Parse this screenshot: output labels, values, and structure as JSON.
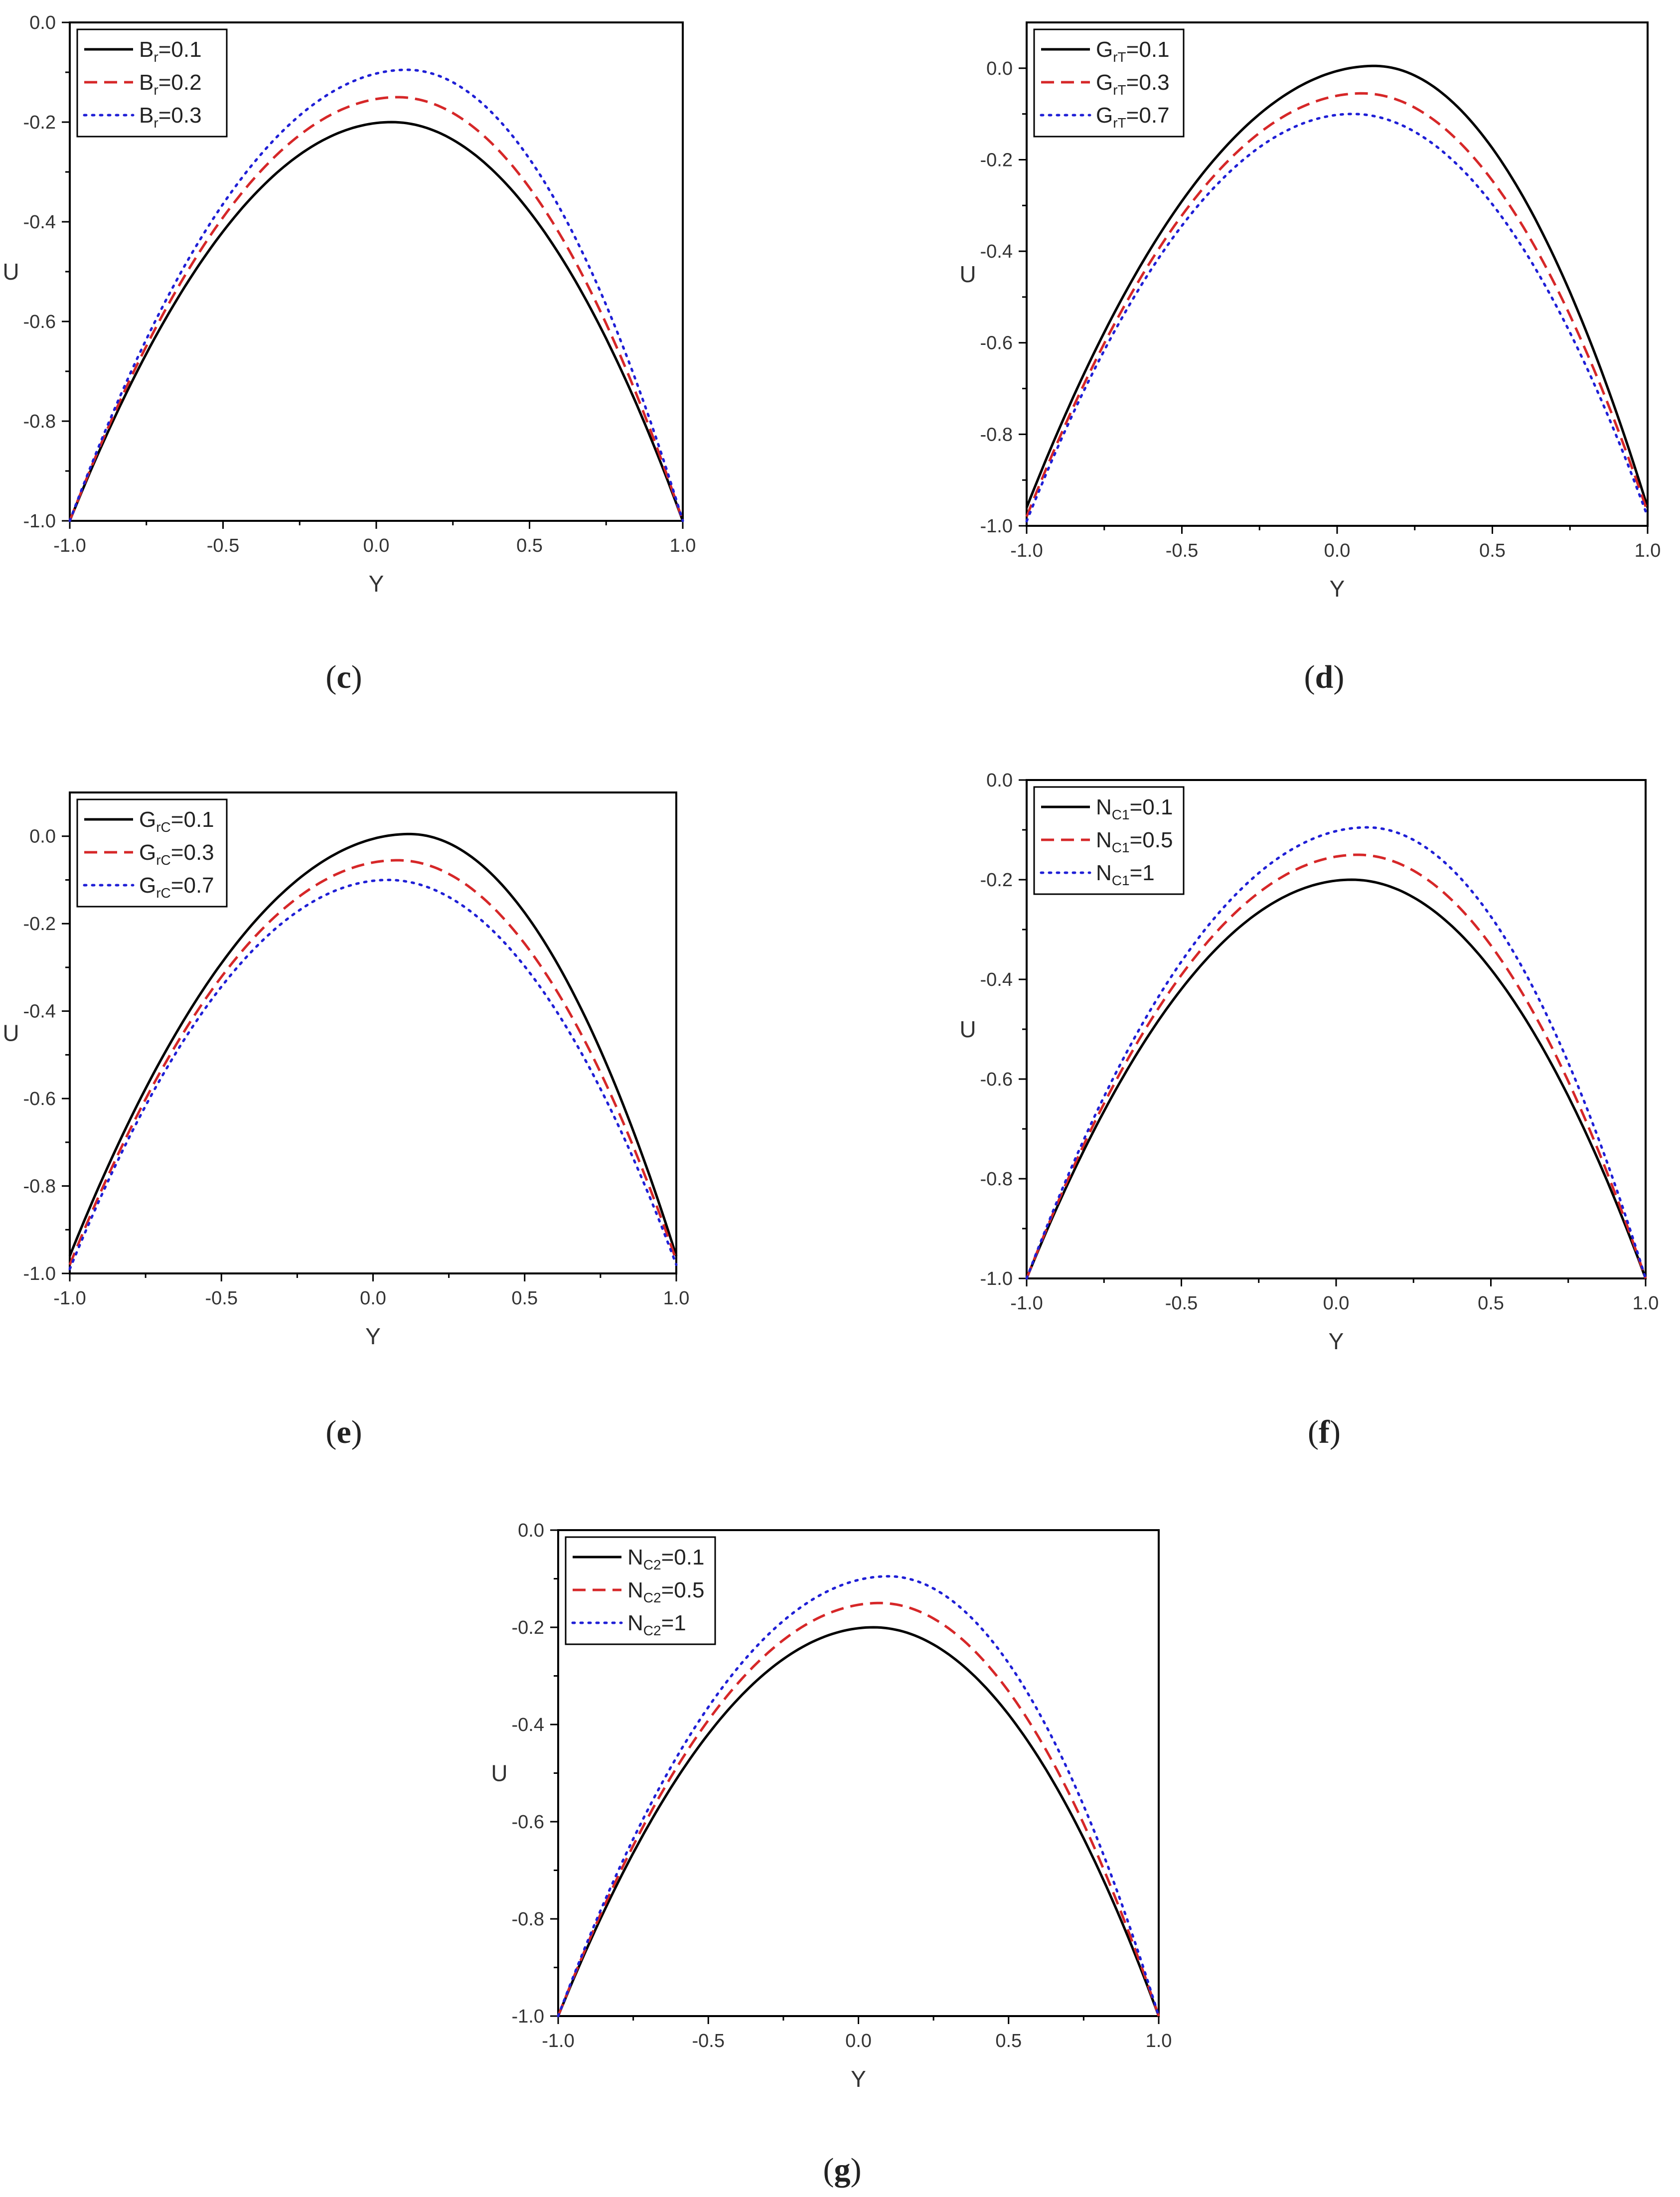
{
  "chart_data": [
    {
      "type": "line",
      "panel": "c",
      "xlabel": "Y",
      "ylabel": "U",
      "xlim": [
        -1.0,
        1.0
      ],
      "ylim": [
        -1.0,
        0.0
      ],
      "xticks": [
        "-1.0",
        "-0.5",
        "0.0",
        "0.5",
        "1.0"
      ],
      "yticks": [
        "0.0",
        "-0.2",
        "-0.4",
        "-0.6",
        "-0.8",
        "-1.0"
      ],
      "legend_position": "top-left",
      "series": [
        {
          "name": "B_r=0.1",
          "label_main": "B",
          "label_sub": "r",
          "label_tail": "=0.1",
          "style": "solid",
          "color": "#000000",
          "left": -1.0,
          "right": -1.0,
          "peak_x": 0.05,
          "peak_y": -0.2
        },
        {
          "name": "B_r=0.2",
          "label_main": "B",
          "label_sub": "r",
          "label_tail": "=0.2",
          "style": "dashed",
          "color": "#d62728",
          "left": -1.0,
          "right": -1.0,
          "peak_x": 0.07,
          "peak_y": -0.15
        },
        {
          "name": "B_r=0.3",
          "label_main": "B",
          "label_sub": "r",
          "label_tail": "=0.3",
          "style": "dotted",
          "color": "#1f1fd6",
          "left": -1.0,
          "right": -1.0,
          "peak_x": 0.1,
          "peak_y": -0.095
        }
      ]
    },
    {
      "type": "line",
      "panel": "d",
      "xlabel": "Y",
      "ylabel": "U",
      "xlim": [
        -1.0,
        1.0
      ],
      "ylim": [
        -1.0,
        0.1
      ],
      "xticks": [
        "-1.0",
        "-0.5",
        "0.0",
        "0.5",
        "1.0"
      ],
      "yticks": [
        "0.0",
        "-0.2",
        "-0.4",
        "-0.6",
        "-0.8",
        "-1.0"
      ],
      "legend_position": "top-left",
      "series": [
        {
          "name": "G_rT=0.1",
          "label_main": "G",
          "label_sub": "rT",
          "label_tail": "=0.1",
          "style": "solid",
          "color": "#000000",
          "left": -0.96,
          "right": -0.96,
          "peak_x": 0.12,
          "peak_y": 0.005
        },
        {
          "name": "G_rT=0.3",
          "label_main": "G",
          "label_sub": "rT",
          "label_tail": "=0.3",
          "style": "dashed",
          "color": "#d62728",
          "left": -0.98,
          "right": -0.97,
          "peak_x": 0.08,
          "peak_y": -0.055
        },
        {
          "name": "G_rT=0.7",
          "label_main": "G",
          "label_sub": "rT",
          "label_tail": "=0.7",
          "style": "dotted",
          "color": "#1f1fd6",
          "left": -0.99,
          "right": -0.98,
          "peak_x": 0.05,
          "peak_y": -0.1
        }
      ]
    },
    {
      "type": "line",
      "panel": "e",
      "xlabel": "Y",
      "ylabel": "U",
      "xlim": [
        -1.0,
        1.0
      ],
      "ylim": [
        -1.0,
        0.1
      ],
      "xticks": [
        "-1.0",
        "-0.5",
        "0.0",
        "0.5",
        "1.0"
      ],
      "yticks": [
        "0.0",
        "-0.2",
        "-0.4",
        "-0.6",
        "-0.8",
        "-1.0"
      ],
      "legend_position": "top-left",
      "series": [
        {
          "name": "G_rC=0.1",
          "label_main": "G",
          "label_sub": "rC",
          "label_tail": "=0.1",
          "style": "solid",
          "color": "#000000",
          "left": -0.96,
          "right": -0.96,
          "peak_x": 0.12,
          "peak_y": 0.005
        },
        {
          "name": "G_rC=0.3",
          "label_main": "G",
          "label_sub": "rC",
          "label_tail": "=0.3",
          "style": "dashed",
          "color": "#d62728",
          "left": -0.98,
          "right": -0.97,
          "peak_x": 0.08,
          "peak_y": -0.055
        },
        {
          "name": "G_rC=0.7",
          "label_main": "G",
          "label_sub": "rC",
          "label_tail": "=0.7",
          "style": "dotted",
          "color": "#1f1fd6",
          "left": -0.99,
          "right": -0.98,
          "peak_x": 0.05,
          "peak_y": -0.1
        }
      ]
    },
    {
      "type": "line",
      "panel": "f",
      "xlabel": "Y",
      "ylabel": "U",
      "xlim": [
        -1.0,
        1.0
      ],
      "ylim": [
        -1.0,
        0.0
      ],
      "xticks": [
        "-1.0",
        "-0.5",
        "0.0",
        "0.5",
        "1.0"
      ],
      "yticks": [
        "0.0",
        "-0.2",
        "-0.4",
        "-0.6",
        "-0.8",
        "-1.0"
      ],
      "legend_position": "top-left",
      "series": [
        {
          "name": "N_C1=0.1",
          "label_main": "N",
          "label_sub": "C1",
          "label_tail": "=0.1",
          "style": "solid",
          "color": "#000000",
          "left": -1.0,
          "right": -1.0,
          "peak_x": 0.05,
          "peak_y": -0.2
        },
        {
          "name": "N_C1=0.5",
          "label_main": "N",
          "label_sub": "C1",
          "label_tail": "=0.5",
          "style": "dashed",
          "color": "#d62728",
          "left": -1.0,
          "right": -1.0,
          "peak_x": 0.07,
          "peak_y": -0.15
        },
        {
          "name": "N_C1=1",
          "label_main": "N",
          "label_sub": "C1",
          "label_tail": "=1",
          "style": "dotted",
          "color": "#1f1fd6",
          "left": -1.0,
          "right": -1.0,
          "peak_x": 0.1,
          "peak_y": -0.095
        }
      ]
    },
    {
      "type": "line",
      "panel": "g",
      "xlabel": "Y",
      "ylabel": "U",
      "xlim": [
        -1.0,
        1.0
      ],
      "ylim": [
        -1.0,
        0.0
      ],
      "xticks": [
        "-1.0",
        "-0.5",
        "0.0",
        "0.5",
        "1.0"
      ],
      "yticks": [
        "0.0",
        "-0.2",
        "-0.4",
        "-0.6",
        "-0.8",
        "-1.0"
      ],
      "legend_position": "top-left",
      "series": [
        {
          "name": "N_C2=0.1",
          "label_main": "N",
          "label_sub": "C2",
          "label_tail": "=0.1",
          "style": "solid",
          "color": "#000000",
          "left": -1.0,
          "right": -1.0,
          "peak_x": 0.05,
          "peak_y": -0.2
        },
        {
          "name": "N_C2=0.5",
          "label_main": "N",
          "label_sub": "C2",
          "label_tail": "=0.5",
          "style": "dashed",
          "color": "#d62728",
          "left": -1.0,
          "right": -1.0,
          "peak_x": 0.07,
          "peak_y": -0.15
        },
        {
          "name": "N_C2=1",
          "label_main": "N",
          "label_sub": "C2",
          "label_tail": "=1",
          "style": "dotted",
          "color": "#1f1fd6",
          "left": -1.0,
          "right": -1.0,
          "peak_x": 0.1,
          "peak_y": -0.095
        }
      ]
    }
  ],
  "captions": [
    {
      "panel": "c",
      "open": "(",
      "letter": "c",
      "close": ")"
    },
    {
      "panel": "d",
      "open": "(",
      "letter": "d",
      "close": ")"
    },
    {
      "panel": "e",
      "open": "(",
      "letter": "e",
      "close": ")"
    },
    {
      "panel": "f",
      "open": "(",
      "letter": "f",
      "close": ")"
    },
    {
      "panel": "g",
      "open": "(",
      "letter": "g",
      "close": ")"
    }
  ]
}
